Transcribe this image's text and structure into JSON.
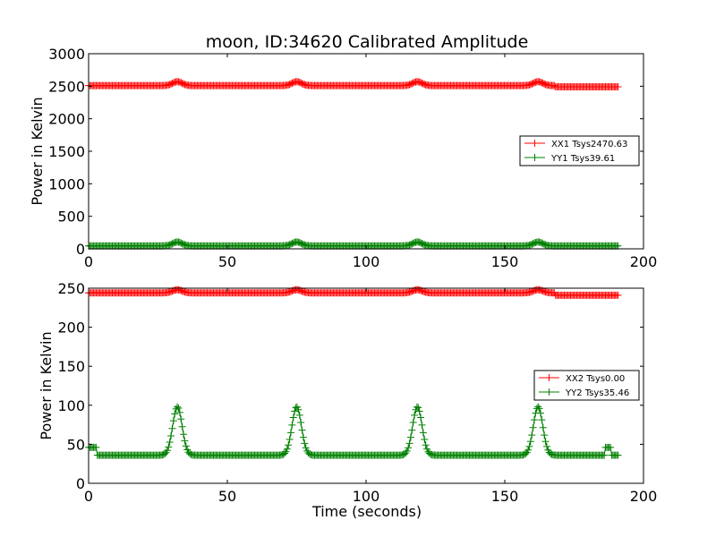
{
  "figure": {
    "title": "moon, ID:34620 Calibrated Amplitude",
    "xlabel": "Time (seconds)"
  },
  "colors": {
    "xx": "#ff0000",
    "yy": "#008000"
  },
  "chart_data": [
    {
      "type": "line",
      "title": "moon, ID:34620 Calibrated Amplitude",
      "xlabel": "",
      "ylabel": "Power in Kelvin",
      "xlim": [
        0,
        200
      ],
      "ylim": [
        0,
        3000
      ],
      "xticks": [
        0,
        50,
        100,
        150,
        200
      ],
      "yticks": [
        0,
        500,
        1000,
        1500,
        2000,
        2500,
        3000
      ],
      "legend_position": "right",
      "series": [
        {
          "name": "XX1 Tsys2470.63",
          "color": "#ff0000",
          "marker": "+",
          "x_range": [
            0,
            191
          ],
          "baseline": 2510,
          "peaks": [
            {
              "center": 32,
              "height": 60
            },
            {
              "center": 75,
              "height": 60
            },
            {
              "center": 118.5,
              "height": 60
            },
            {
              "center": 162,
              "height": 60
            }
          ],
          "tail_baseline": 2490,
          "tail_start": 168
        },
        {
          "name": "YY1 Tsys39.61",
          "color": "#008000",
          "marker": "+",
          "x_range": [
            0,
            191
          ],
          "baseline": 45,
          "peaks": [
            {
              "center": 32,
              "height": 60
            },
            {
              "center": 75,
              "height": 60
            },
            {
              "center": 118.5,
              "height": 60
            },
            {
              "center": 162,
              "height": 60
            }
          ]
        }
      ]
    },
    {
      "type": "line",
      "title": "",
      "xlabel": "Time (seconds)",
      "ylabel": "Power in Kelvin",
      "xlim": [
        0,
        200
      ],
      "ylim": [
        0,
        250
      ],
      "xticks": [
        0,
        50,
        100,
        150,
        200
      ],
      "yticks": [
        0,
        50,
        100,
        150,
        200,
        250
      ],
      "legend_position": "right",
      "series": [
        {
          "name": "XX2 Tsys0.00",
          "color": "#ff0000",
          "marker": "+",
          "x_range": [
            0,
            191
          ],
          "baseline": 244,
          "peaks": [
            {
              "center": 32,
              "height": 4
            },
            {
              "center": 75,
              "height": 4
            },
            {
              "center": 118.5,
              "height": 4
            },
            {
              "center": 162,
              "height": 4
            }
          ],
          "tail_baseline": 241,
          "tail_start": 168
        },
        {
          "name": "YY2 Tsys35.46",
          "color": "#008000",
          "marker": "+",
          "x_range": [
            0,
            191
          ],
          "baseline": 36,
          "peaks": [
            {
              "center": 32,
              "height": 62
            },
            {
              "center": 75,
              "height": 62
            },
            {
              "center": 118.5,
              "height": 62
            },
            {
              "center": 162,
              "height": 62
            }
          ],
          "steps": [
            {
              "from": 0,
              "to": 3,
              "value": 46
            },
            {
              "from": 186,
              "to": 188.5,
              "value": 46
            }
          ]
        }
      ]
    }
  ]
}
